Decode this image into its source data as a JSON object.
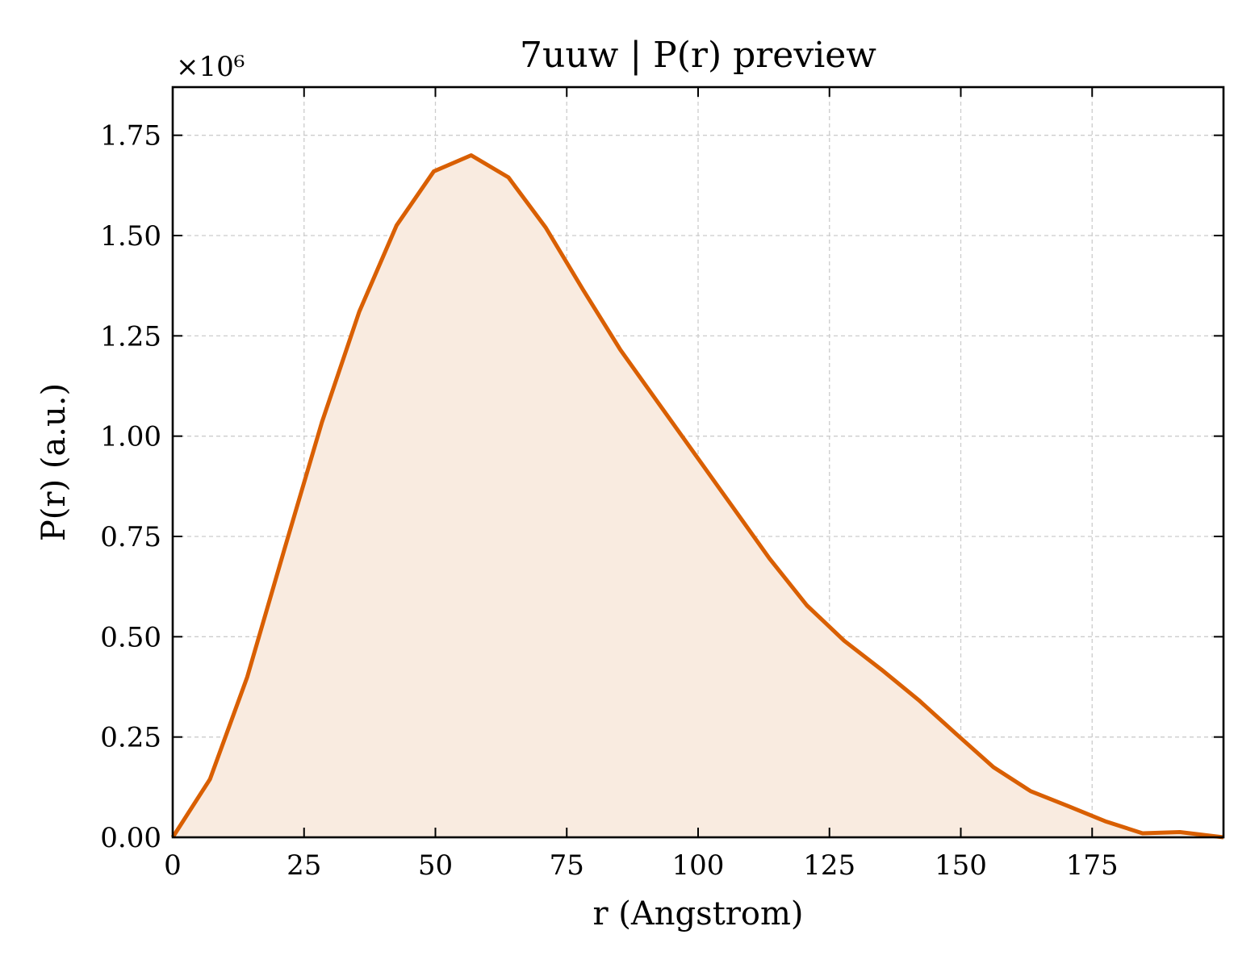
{
  "chart_data": {
    "type": "area",
    "title": "7uuw | P(r) preview",
    "xlabel": "r (Angstrom)",
    "ylabel": "P(r) (a.u.)",
    "y_offset_label": "×10⁶",
    "y_multiplier": 1000000,
    "xlim": [
      0,
      200
    ],
    "ylim": [
      0,
      1.87
    ],
    "xticks": [
      0,
      25,
      50,
      75,
      100,
      125,
      150,
      175
    ],
    "xtick_labels": [
      "0",
      "25",
      "50",
      "75",
      "100",
      "125",
      "150",
      "175"
    ],
    "yticks": [
      0,
      0.25,
      0.5,
      0.75,
      1.0,
      1.25,
      1.5,
      1.75
    ],
    "ytick_labels": [
      "0.00",
      "0.25",
      "0.50",
      "0.75",
      "1.00",
      "1.25",
      "1.50",
      "1.75"
    ],
    "grid": true,
    "line_color": "#d95f02",
    "fill_color": "#f9ebe0",
    "x": [
      0,
      7.1,
      14.2,
      21.3,
      28.4,
      35.5,
      42.6,
      49.7,
      56.8,
      63.9,
      71.0,
      78.1,
      85.2,
      92.3,
      99.4,
      106.5,
      113.6,
      120.7,
      127.8,
      134.9,
      142.0,
      149.1,
      156.2,
      163.3,
      170.4,
      177.5,
      184.6,
      191.7,
      200
    ],
    "y": [
      0.0,
      0.145,
      0.4,
      0.72,
      1.035,
      1.31,
      1.525,
      1.66,
      1.7,
      1.645,
      1.52,
      1.365,
      1.215,
      1.085,
      0.955,
      0.825,
      0.695,
      0.578,
      0.49,
      0.418,
      0.342,
      0.258,
      0.175,
      0.115,
      0.078,
      0.04,
      0.01,
      0.013,
      0.0
    ]
  }
}
